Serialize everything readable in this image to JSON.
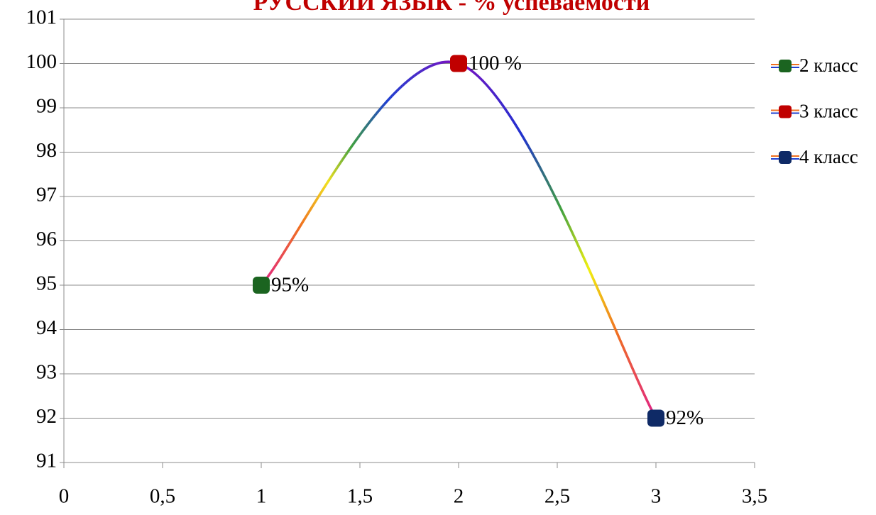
{
  "chart_data": {
    "type": "line",
    "title": "РУССКИЙ ЯЗЫК - % успеваемости",
    "series": [
      {
        "name": "2 класс",
        "color": "#1b6420",
        "x": [
          1
        ],
        "values": [
          95
        ],
        "value_labels": [
          "95%"
        ]
      },
      {
        "name": "3 класс",
        "color": "#c00000",
        "x": [
          2
        ],
        "values": [
          100
        ],
        "value_labels": [
          "100 %"
        ]
      },
      {
        "name": "4 класс",
        "color": "#0f2a66",
        "x": [
          3
        ],
        "values": [
          92
        ],
        "value_labels": [
          "92%"
        ]
      }
    ],
    "xlim": [
      0,
      3.5
    ],
    "xticks": [
      0,
      {
        "value": 0.5,
        "label": "0,5"
      },
      1,
      {
        "value": 1.5,
        "label": "1,5"
      },
      2,
      {
        "value": 2.5,
        "label": "2,5"
      },
      3,
      {
        "value": 3.5,
        "label": "3,5"
      }
    ],
    "ylim": [
      91,
      101
    ],
    "yticks": [
      91,
      92,
      93,
      94,
      95,
      96,
      97,
      98,
      99,
      100,
      101
    ],
    "grid": true,
    "legend": "right"
  }
}
